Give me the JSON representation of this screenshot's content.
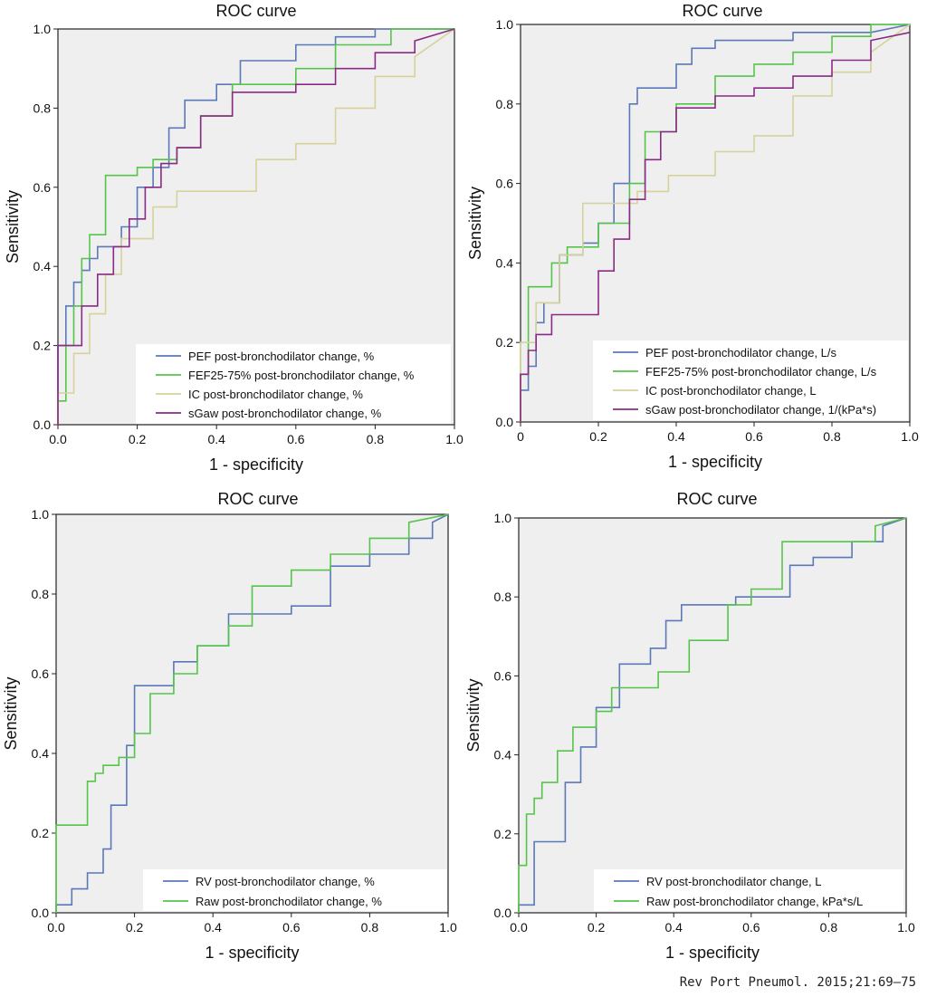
{
  "source": "Rev Port Pneumol. 2015;21:69–75",
  "colors": {
    "plot_bg": "#efefef",
    "blue": "#5b78b8",
    "green": "#55c54a",
    "khaki": "#d6d29b",
    "purple": "#8b2a86",
    "axis": "#222222"
  },
  "chart_data": [
    {
      "type": "line",
      "title": "ROC curve",
      "xlabel": "1 - specificity",
      "ylabel": "Sensitivity",
      "xlim": [
        0,
        1
      ],
      "ylim": [
        0,
        1
      ],
      "xticks": [
        "0.0",
        "0.2",
        "0.4",
        "0.6",
        "0.8",
        "1.0"
      ],
      "yticks": [
        "0.0",
        "0.2",
        "0.4",
        "0.6",
        "0.8",
        "1.0"
      ],
      "series": [
        {
          "name": "PEF post-bronchodilator change, %",
          "color": "blue",
          "x": [
            0,
            0,
            0.02,
            0.02,
            0.04,
            0.04,
            0.06,
            0.06,
            0.08,
            0.08,
            0.1,
            0.1,
            0.16,
            0.16,
            0.2,
            0.2,
            0.24,
            0.24,
            0.28,
            0.28,
            0.32,
            0.32,
            0.36,
            0.36,
            0.4,
            0.4,
            0.46,
            0.46,
            0.6,
            0.6,
            0.7,
            0.7,
            0.8,
            0.8,
            0.9,
            1
          ],
          "y": [
            0,
            0.2,
            0.2,
            0.3,
            0.3,
            0.36,
            0.36,
            0.39,
            0.39,
            0.42,
            0.42,
            0.45,
            0.45,
            0.5,
            0.5,
            0.6,
            0.6,
            0.65,
            0.65,
            0.75,
            0.75,
            0.82,
            0.82,
            0.82,
            0.82,
            0.86,
            0.86,
            0.92,
            0.92,
            0.96,
            0.96,
            0.98,
            0.98,
            1,
            1,
            1
          ]
        },
        {
          "name": "FEF25-75% post-bronchodilator change, %",
          "color": "green",
          "x": [
            0,
            0,
            0.02,
            0.02,
            0.04,
            0.04,
            0.06,
            0.06,
            0.08,
            0.08,
            0.12,
            0.12,
            0.2,
            0.2,
            0.24,
            0.24,
            0.3,
            0.3,
            0.36,
            0.36,
            0.44,
            0.44,
            0.6,
            0.6,
            0.7,
            0.7,
            0.84,
            0.84,
            1
          ],
          "y": [
            0,
            0.06,
            0.06,
            0.2,
            0.2,
            0.3,
            0.3,
            0.42,
            0.42,
            0.48,
            0.48,
            0.63,
            0.63,
            0.65,
            0.65,
            0.67,
            0.67,
            0.7,
            0.7,
            0.78,
            0.78,
            0.86,
            0.86,
            0.9,
            0.9,
            0.96,
            0.96,
            1,
            1
          ]
        },
        {
          "name": "IC post-bronchodilator change, %",
          "color": "khaki",
          "x": [
            0,
            0,
            0.04,
            0.04,
            0.08,
            0.08,
            0.12,
            0.12,
            0.16,
            0.16,
            0.24,
            0.24,
            0.3,
            0.3,
            0.36,
            0.36,
            0.5,
            0.5,
            0.6,
            0.6,
            0.7,
            0.7,
            0.8,
            0.8,
            0.9,
            0.9,
            1
          ],
          "y": [
            0,
            0.08,
            0.08,
            0.18,
            0.18,
            0.28,
            0.28,
            0.38,
            0.38,
            0.47,
            0.47,
            0.55,
            0.55,
            0.59,
            0.59,
            0.59,
            0.59,
            0.67,
            0.67,
            0.71,
            0.71,
            0.8,
            0.8,
            0.88,
            0.88,
            0.93,
            1
          ]
        },
        {
          "name": "sGaw post-bronchodilator change, %",
          "color": "purple",
          "x": [
            0,
            0,
            0.06,
            0.06,
            0.1,
            0.1,
            0.14,
            0.14,
            0.18,
            0.18,
            0.22,
            0.22,
            0.26,
            0.26,
            0.3,
            0.3,
            0.36,
            0.36,
            0.44,
            0.44,
            0.6,
            0.6,
            0.7,
            0.7,
            0.8,
            0.8,
            0.9,
            0.9,
            1
          ],
          "y": [
            0,
            0.2,
            0.2,
            0.3,
            0.3,
            0.38,
            0.38,
            0.45,
            0.45,
            0.52,
            0.52,
            0.6,
            0.6,
            0.66,
            0.66,
            0.7,
            0.7,
            0.78,
            0.78,
            0.84,
            0.84,
            0.86,
            0.86,
            0.9,
            0.9,
            0.94,
            0.94,
            0.97,
            1
          ]
        }
      ]
    },
    {
      "type": "line",
      "title": "ROC curve",
      "xlabel": "1 - specificity",
      "ylabel": "Sensitivity",
      "xlim": [
        0,
        1
      ],
      "ylim": [
        0,
        1
      ],
      "xticks": [
        "0",
        "0.2",
        "0.4",
        "0.6",
        "0.8",
        "1.0"
      ],
      "yticks": [
        "0.0",
        "0.2",
        "0.4",
        "0.6",
        "0.8",
        "1.0"
      ],
      "series": [
        {
          "name": "PEF post-bronchodilator change, L/s",
          "color": "blue",
          "x": [
            0,
            0,
            0.02,
            0.02,
            0.04,
            0.04,
            0.06,
            0.06,
            0.1,
            0.1,
            0.16,
            0.16,
            0.2,
            0.2,
            0.24,
            0.24,
            0.28,
            0.28,
            0.3,
            0.3,
            0.4,
            0.4,
            0.44,
            0.44,
            0.5,
            0.5,
            0.7,
            0.7,
            0.9,
            1
          ],
          "y": [
            0,
            0.08,
            0.08,
            0.14,
            0.14,
            0.25,
            0.25,
            0.3,
            0.3,
            0.42,
            0.42,
            0.45,
            0.45,
            0.5,
            0.5,
            0.6,
            0.6,
            0.8,
            0.8,
            0.84,
            0.84,
            0.9,
            0.9,
            0.94,
            0.94,
            0.96,
            0.96,
            0.98,
            0.98,
            1
          ]
        },
        {
          "name": "FEF25-75% post-bronchodilator change, L/s",
          "color": "green",
          "x": [
            0,
            0,
            0.02,
            0.02,
            0.08,
            0.08,
            0.12,
            0.12,
            0.2,
            0.2,
            0.28,
            0.28,
            0.32,
            0.32,
            0.4,
            0.4,
            0.5,
            0.5,
            0.6,
            0.6,
            0.7,
            0.7,
            0.8,
            0.8,
            0.9,
            0.9,
            1
          ],
          "y": [
            0,
            0.12,
            0.12,
            0.34,
            0.34,
            0.4,
            0.4,
            0.44,
            0.44,
            0.5,
            0.5,
            0.6,
            0.6,
            0.73,
            0.73,
            0.8,
            0.8,
            0.87,
            0.87,
            0.9,
            0.9,
            0.93,
            0.93,
            0.97,
            0.97,
            1,
            1
          ]
        },
        {
          "name": "IC post-bronchodilator change, L",
          "color": "khaki",
          "x": [
            0,
            0,
            0.04,
            0.04,
            0.1,
            0.1,
            0.16,
            0.16,
            0.2,
            0.2,
            0.3,
            0.3,
            0.38,
            0.38,
            0.5,
            0.5,
            0.6,
            0.6,
            0.7,
            0.7,
            0.8,
            0.8,
            0.9,
            0.9,
            1
          ],
          "y": [
            0,
            0.2,
            0.2,
            0.3,
            0.3,
            0.42,
            0.42,
            0.55,
            0.55,
            0.55,
            0.55,
            0.58,
            0.58,
            0.62,
            0.62,
            0.68,
            0.68,
            0.72,
            0.72,
            0.82,
            0.82,
            0.88,
            0.88,
            0.93,
            1
          ]
        },
        {
          "name": "sGaw post-bronchodilator change, 1/(kPa*s)",
          "color": "purple",
          "x": [
            0,
            0,
            0.02,
            0.02,
            0.04,
            0.04,
            0.08,
            0.08,
            0.2,
            0.2,
            0.24,
            0.24,
            0.28,
            0.28,
            0.32,
            0.32,
            0.36,
            0.36,
            0.4,
            0.4,
            0.5,
            0.5,
            0.6,
            0.6,
            0.7,
            0.7,
            0.8,
            0.8,
            0.9,
            0.9,
            1
          ],
          "y": [
            0,
            0.12,
            0.12,
            0.18,
            0.18,
            0.22,
            0.22,
            0.27,
            0.27,
            0.38,
            0.38,
            0.46,
            0.46,
            0.56,
            0.56,
            0.66,
            0.66,
            0.73,
            0.73,
            0.79,
            0.79,
            0.82,
            0.82,
            0.84,
            0.84,
            0.87,
            0.87,
            0.91,
            0.91,
            0.96,
            0.98
          ]
        }
      ]
    },
    {
      "type": "line",
      "title": "ROC curve",
      "xlabel": "1 - specificity",
      "ylabel": "Sensitivity",
      "xlim": [
        0,
        1
      ],
      "ylim": [
        0,
        1
      ],
      "xticks": [
        "0.0",
        "0.2",
        "0.4",
        "0.6",
        "0.8",
        "1.0"
      ],
      "yticks": [
        "0.0",
        "0.2",
        "0.4",
        "0.6",
        "0.8",
        "1.0"
      ],
      "series": [
        {
          "name": "RV post-bronchodilator change, %",
          "color": "blue",
          "x": [
            0,
            0,
            0.04,
            0.04,
            0.08,
            0.08,
            0.12,
            0.12,
            0.14,
            0.14,
            0.18,
            0.18,
            0.2,
            0.2,
            0.3,
            0.3,
            0.36,
            0.36,
            0.44,
            0.44,
            0.6,
            0.6,
            0.7,
            0.7,
            0.8,
            0.8,
            0.9,
            0.9,
            0.96,
            0.96,
            1
          ],
          "y": [
            0,
            0.02,
            0.02,
            0.06,
            0.06,
            0.1,
            0.1,
            0.16,
            0.16,
            0.27,
            0.27,
            0.42,
            0.42,
            0.57,
            0.57,
            0.63,
            0.63,
            0.67,
            0.67,
            0.75,
            0.75,
            0.77,
            0.77,
            0.87,
            0.87,
            0.9,
            0.9,
            0.94,
            0.94,
            0.98,
            1
          ]
        },
        {
          "name": "Raw post-bronchodilator change, %",
          "color": "green",
          "x": [
            0,
            0,
            0.08,
            0.08,
            0.1,
            0.1,
            0.12,
            0.12,
            0.16,
            0.16,
            0.2,
            0.2,
            0.24,
            0.24,
            0.3,
            0.3,
            0.36,
            0.36,
            0.44,
            0.44,
            0.5,
            0.5,
            0.6,
            0.6,
            0.7,
            0.7,
            0.8,
            0.8,
            0.9,
            0.9,
            1
          ],
          "y": [
            0,
            0.22,
            0.22,
            0.33,
            0.33,
            0.35,
            0.35,
            0.37,
            0.37,
            0.39,
            0.39,
            0.45,
            0.45,
            0.55,
            0.55,
            0.6,
            0.6,
            0.67,
            0.67,
            0.72,
            0.72,
            0.82,
            0.82,
            0.86,
            0.86,
            0.9,
            0.9,
            0.94,
            0.94,
            0.98,
            1
          ]
        }
      ]
    },
    {
      "type": "line",
      "title": "ROC curve",
      "xlabel": "1 - specificity",
      "ylabel": "Sensitivity",
      "xlim": [
        0,
        1
      ],
      "ylim": [
        0,
        1
      ],
      "xticks": [
        "0.0",
        "0.2",
        "0.4",
        "0.6",
        "0.8",
        "1.0"
      ],
      "yticks": [
        "0.0",
        "0.2",
        "0.4",
        "0.6",
        "0.8",
        "1.0"
      ],
      "series": [
        {
          "name": "RV post-bronchodilator change, L",
          "color": "blue",
          "x": [
            0,
            0,
            0.04,
            0.04,
            0.12,
            0.12,
            0.16,
            0.16,
            0.2,
            0.2,
            0.26,
            0.26,
            0.34,
            0.34,
            0.38,
            0.38,
            0.42,
            0.42,
            0.56,
            0.56,
            0.7,
            0.7,
            0.76,
            0.76,
            0.86,
            0.86,
            0.94,
            0.94,
            1
          ],
          "y": [
            0,
            0.02,
            0.02,
            0.18,
            0.18,
            0.33,
            0.33,
            0.42,
            0.42,
            0.52,
            0.52,
            0.63,
            0.63,
            0.67,
            0.67,
            0.74,
            0.74,
            0.78,
            0.78,
            0.8,
            0.8,
            0.88,
            0.88,
            0.9,
            0.9,
            0.94,
            0.94,
            0.98,
            1
          ]
        },
        {
          "name": "Raw post-bronchodilator change, kPa*s/L",
          "color": "green",
          "x": [
            0,
            0,
            0.02,
            0.02,
            0.04,
            0.04,
            0.06,
            0.06,
            0.1,
            0.1,
            0.14,
            0.14,
            0.2,
            0.2,
            0.24,
            0.24,
            0.36,
            0.36,
            0.44,
            0.44,
            0.54,
            0.54,
            0.6,
            0.6,
            0.68,
            0.68,
            0.92,
            0.92,
            1
          ],
          "y": [
            0,
            0.12,
            0.12,
            0.25,
            0.25,
            0.29,
            0.29,
            0.33,
            0.33,
            0.41,
            0.41,
            0.47,
            0.47,
            0.51,
            0.51,
            0.57,
            0.57,
            0.61,
            0.61,
            0.69,
            0.69,
            0.78,
            0.78,
            0.82,
            0.82,
            0.94,
            0.94,
            0.98,
            1
          ]
        }
      ]
    }
  ]
}
